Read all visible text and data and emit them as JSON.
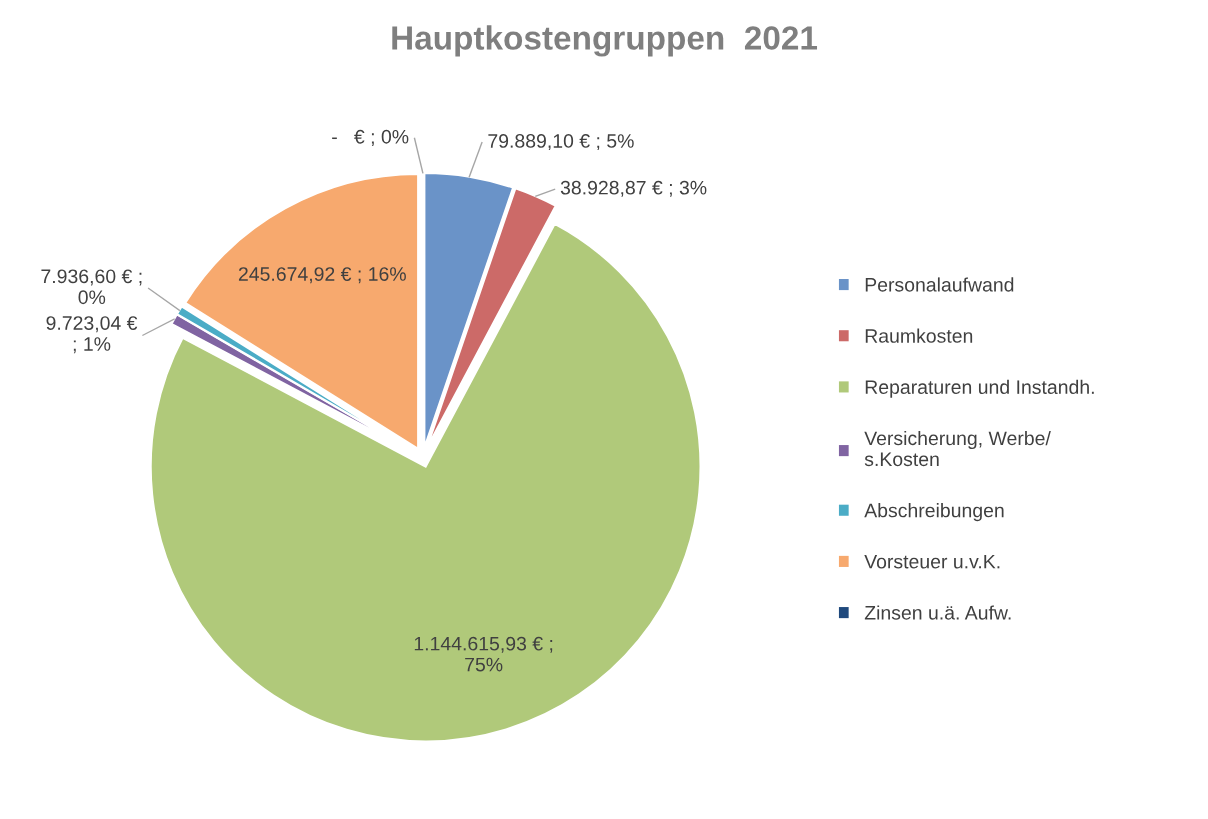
{
  "chart_data": {
    "type": "pie",
    "title": "Hauptkostengruppen  2021",
    "categories": [
      "Personalaufwand",
      "Raumkosten",
      "Reparaturen und Instandh.",
      "Versicherung, Werbe/\ns.Kosten",
      "Abschreibungen",
      "Vorsteuer u.v.K.",
      "Zinsen u.ä. Aufw."
    ],
    "values": [
      79889.1,
      38928.87,
      1144615.93,
      9723.04,
      7936.6,
      245674.92,
      0
    ],
    "colors": [
      "#6a93c8",
      "#cc6a68",
      "#b0c97a",
      "#8064a2",
      "#4bacc6",
      "#f7a96e",
      "#1f497d"
    ],
    "value_labels": [
      "79.889,10 € ; 5%",
      "38.928,87 € ; 3%",
      "1.144.615,93 € ;\n75%",
      "9.723,04 €\n; 1%",
      "7.936,60 € ;\n0%",
      "245.674,92 € ; 16%",
      "-   € ; 0%"
    ],
    "legend": "right"
  }
}
